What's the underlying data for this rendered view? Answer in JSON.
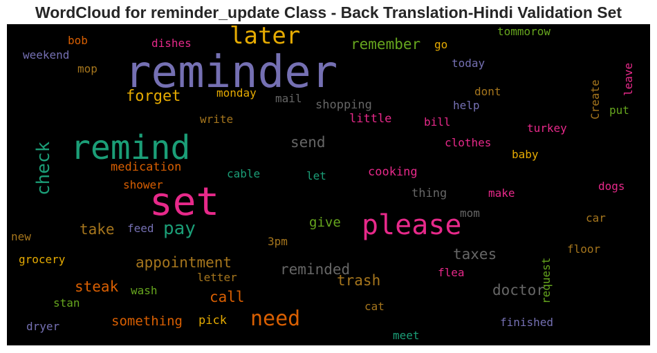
{
  "chart_data": {
    "type": "wordcloud",
    "title": "WordCloud for reminder_update Class - Back Translation-Hindi Validation Set",
    "background": "#000000",
    "colormap": "Dark2",
    "words": [
      {
        "text": "reminder",
        "color": "#7570b3"
      },
      {
        "text": "remind",
        "color": "#1b9e77"
      },
      {
        "text": "set",
        "color": "#e7298a"
      },
      {
        "text": "please",
        "color": "#e7298a"
      },
      {
        "text": "later",
        "color": "#e6ab02"
      },
      {
        "text": "need",
        "color": "#d95f02"
      },
      {
        "text": "check",
        "color": "#1b9e77"
      },
      {
        "text": "pay",
        "color": "#1b9e77"
      },
      {
        "text": "forget",
        "color": "#e6ab02"
      },
      {
        "text": "remember",
        "color": "#66a61e"
      },
      {
        "text": "appointment",
        "color": "#a6761d"
      },
      {
        "text": "reminded",
        "color": "#666666"
      },
      {
        "text": "doctor",
        "color": "#666666"
      },
      {
        "text": "trash",
        "color": "#a6761d"
      },
      {
        "text": "steak",
        "color": "#d95f02"
      },
      {
        "text": "call",
        "color": "#d95f02"
      },
      {
        "text": "take",
        "color": "#a6761d"
      },
      {
        "text": "give",
        "color": "#66a61e"
      },
      {
        "text": "send",
        "color": "#666666"
      },
      {
        "text": "taxes",
        "color": "#666666"
      },
      {
        "text": "something",
        "color": "#d95f02"
      },
      {
        "text": "pick",
        "color": "#e6ab02"
      },
      {
        "text": "monday",
        "color": "#e6ab02"
      },
      {
        "text": "mail",
        "color": "#666666"
      },
      {
        "text": "shopping",
        "color": "#666666"
      },
      {
        "text": "little",
        "color": "#e7298a"
      },
      {
        "text": "write",
        "color": "#a6761d"
      },
      {
        "text": "medication",
        "color": "#d95f02"
      },
      {
        "text": "shower",
        "color": "#d95f02"
      },
      {
        "text": "cable",
        "color": "#1b9e77"
      },
      {
        "text": "let",
        "color": "#1b9e77"
      },
      {
        "text": "cooking",
        "color": "#e7298a"
      },
      {
        "text": "thing",
        "color": "#666666"
      },
      {
        "text": "mom",
        "color": "#666666"
      },
      {
        "text": "make",
        "color": "#e7298a"
      },
      {
        "text": "feed",
        "color": "#7570b3"
      },
      {
        "text": "3pm",
        "color": "#a6761d"
      },
      {
        "text": "letter",
        "color": "#a6761d"
      },
      {
        "text": "wash",
        "color": "#66a61e"
      },
      {
        "text": "stan",
        "color": "#66a61e"
      },
      {
        "text": "grocery",
        "color": "#e6ab02"
      },
      {
        "text": "new",
        "color": "#a6761d"
      },
      {
        "text": "dryer",
        "color": "#7570b3"
      },
      {
        "text": "cat",
        "color": "#a6761d"
      },
      {
        "text": "meet",
        "color": "#1b9e77"
      },
      {
        "text": "flea",
        "color": "#e7298a"
      },
      {
        "text": "finished",
        "color": "#7570b3"
      },
      {
        "text": "request",
        "color": "#66a61e"
      },
      {
        "text": "floor",
        "color": "#a6761d"
      },
      {
        "text": "car",
        "color": "#a6761d"
      },
      {
        "text": "dogs",
        "color": "#e7298a"
      },
      {
        "text": "baby",
        "color": "#e6ab02"
      },
      {
        "text": "clothes",
        "color": "#e7298a"
      },
      {
        "text": "turkey",
        "color": "#e7298a"
      },
      {
        "text": "bill",
        "color": "#e7298a"
      },
      {
        "text": "put",
        "color": "#66a61e"
      },
      {
        "text": "help",
        "color": "#7570b3"
      },
      {
        "text": "dont",
        "color": "#a6761d"
      },
      {
        "text": "today",
        "color": "#7570b3"
      },
      {
        "text": "go",
        "color": "#e6ab02"
      },
      {
        "text": "tommorow",
        "color": "#66a61e"
      },
      {
        "text": "Create",
        "color": "#a6761d"
      },
      {
        "text": "leave",
        "color": "#e7298a"
      },
      {
        "text": "dishes",
        "color": "#e7298a"
      },
      {
        "text": "bob",
        "color": "#d95f02"
      },
      {
        "text": "weekend",
        "color": "#7570b3"
      },
      {
        "text": "mop",
        "color": "#a6761d"
      }
    ]
  }
}
